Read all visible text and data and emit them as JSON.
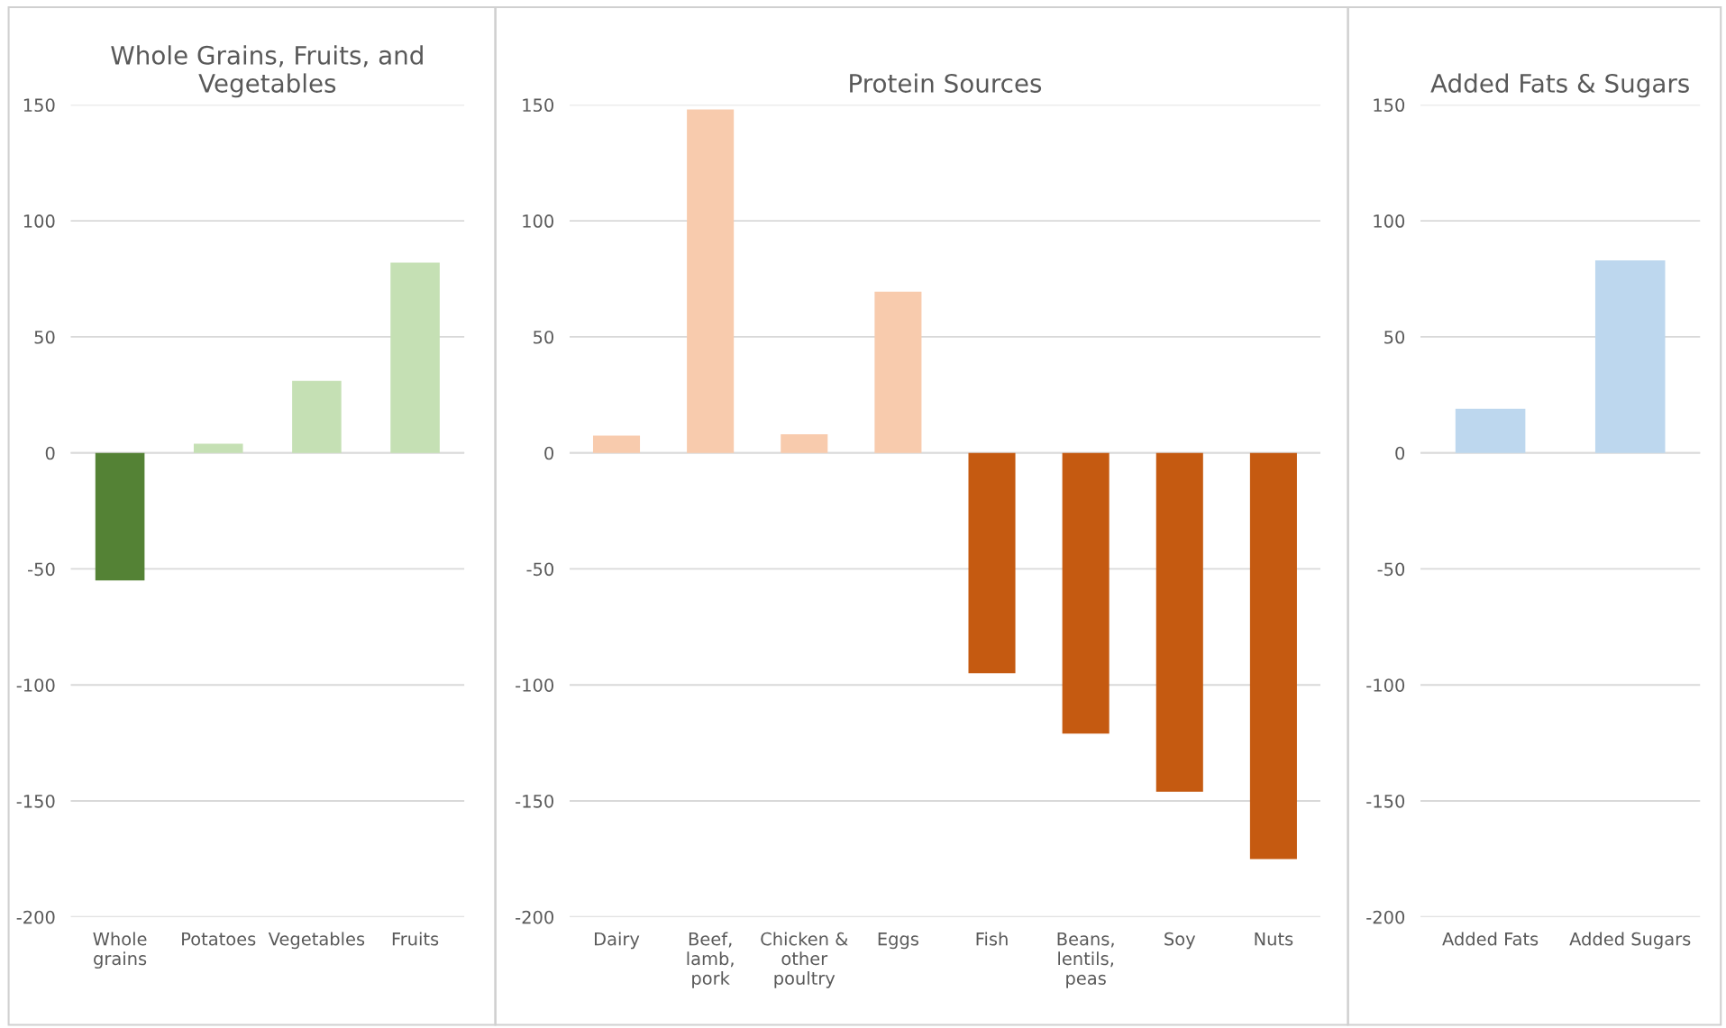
{
  "chart_data": [
    {
      "type": "bar",
      "title": "Whole Grains, Fruits, and\nVegetables",
      "categories": [
        "Whole\ngrains",
        "Potatoes",
        "Vegetables",
        "Fruits"
      ],
      "values": [
        -55,
        4,
        31,
        82
      ],
      "colors": [
        "#548235",
        "#c5e0b4",
        "#c5e0b4",
        "#c5e0b4"
      ],
      "ylim": [
        -200,
        150
      ],
      "yticks": [
        -200,
        -150,
        -100,
        -50,
        0,
        50,
        100,
        150
      ],
      "grid": "y"
    },
    {
      "type": "bar",
      "title": "Protein Sources",
      "categories": [
        "Dairy",
        "Beef,\nlamb,\npork",
        "Chicken &\nother\npoultry",
        "Eggs",
        "Fish",
        "Beans,\nlentils,\npeas",
        "Soy",
        "Nuts"
      ],
      "values": [
        7.5,
        148,
        8,
        69.5,
        -95,
        -121,
        -146,
        -175
      ],
      "colors": [
        "#f8cbad",
        "#f8cbad",
        "#f8cbad",
        "#f8cbad",
        "#c55a11",
        "#c55a11",
        "#c55a11",
        "#c55a11"
      ],
      "ylim": [
        -200,
        150
      ],
      "yticks": [
        -200,
        -150,
        -100,
        -50,
        0,
        50,
        100,
        150
      ],
      "grid": "y"
    },
    {
      "type": "bar",
      "title": "Added Fats & Sugars",
      "categories": [
        "Added Fats",
        "Added Sugars"
      ],
      "values": [
        19,
        83
      ],
      "colors": [
        "#bdd7ee",
        "#bdd7ee"
      ],
      "ylim": [
        -200,
        150
      ],
      "yticks": [
        -200,
        -150,
        -100,
        -50,
        0,
        50,
        100,
        150
      ],
      "grid": "y"
    }
  ]
}
